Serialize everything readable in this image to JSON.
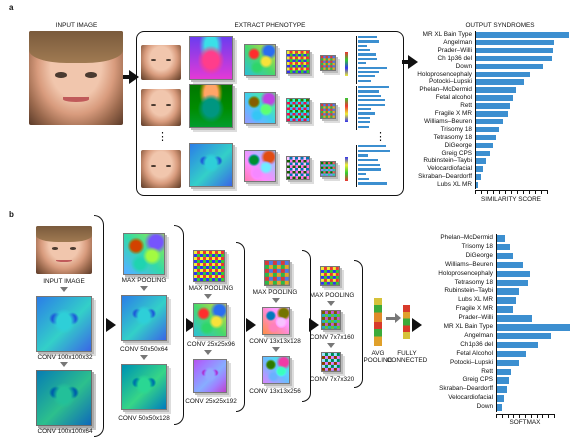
{
  "panel_a": {
    "letter": "a",
    "input_label": "INPUT IMAGE",
    "extract_label": "EXTRACT PHENOTYPE",
    "output_label": "OUTPUT SYNDROMES",
    "similarity_label": "SIMILARITY SCORE",
    "dots": "⋮",
    "syndromes": [
      {
        "name": "MR XL Bain Type",
        "score": 1.0
      },
      {
        "name": "Angelman",
        "score": 0.84
      },
      {
        "name": "Prader–Willi",
        "score": 0.83
      },
      {
        "name": "Ch 1p36 del",
        "score": 0.82
      },
      {
        "name": "Down",
        "score": 0.72
      },
      {
        "name": "Holoprosencephaly",
        "score": 0.58
      },
      {
        "name": "Potocki–Lupski",
        "score": 0.52
      },
      {
        "name": "Phelan–McDermid",
        "score": 0.44
      },
      {
        "name": "Fetal alcohol",
        "score": 0.4
      },
      {
        "name": "Rett",
        "score": 0.37
      },
      {
        "name": "Fragile X MR",
        "score": 0.35
      },
      {
        "name": "Williams–Beuren",
        "score": 0.3
      },
      {
        "name": "Trisomy 18",
        "score": 0.26
      },
      {
        "name": "Tetrasomy 18",
        "score": 0.22
      },
      {
        "name": "DiGeorge",
        "score": 0.19
      },
      {
        "name": "Greig CPS",
        "score": 0.16
      },
      {
        "name": "Rubinstein–Taybi",
        "score": 0.12
      },
      {
        "name": "Velocardiofacial",
        "score": 0.09
      },
      {
        "name": "Skraban–Deardorff",
        "score": 0.06
      },
      {
        "name": "Lubs XL MR",
        "score": 0.03
      }
    ]
  },
  "panel_b": {
    "letter": "b",
    "input_label": "INPUT IMAGE",
    "conv1": "CONV 100x100x32",
    "conv2": "CONV 100x100x64",
    "maxpool1": "MAX POOLING",
    "conv3": "CONV 50x50x64",
    "conv4": "CONV 50x50x128",
    "maxpool2": "MAX POOLING",
    "conv5": "CONV 25x25x96",
    "conv6": "CONV 25x25x192",
    "maxpool3": "MAX POOLING",
    "conv7": "CONV 13x13x128",
    "conv8": "CONV 13x13x256",
    "maxpool4": "MAX POOLING",
    "conv9": "CONV 7x7x160",
    "conv10": "CONV 7x7x320",
    "avg_pool": "AVG\nPOOLING",
    "fully_connected": "FULLY\nCONNECTED",
    "softmax_label": "SOFTMAX",
    "softmax": [
      {
        "name": "Phelan–McDermid",
        "value": 0.12
      },
      {
        "name": "Trisomy 18",
        "value": 0.18
      },
      {
        "name": "DiGeorge",
        "value": 0.22
      },
      {
        "name": "Williams–Beuren",
        "value": 0.35
      },
      {
        "name": "Holoprosencephaly",
        "value": 0.45
      },
      {
        "name": "Tetrasomy 18",
        "value": 0.42
      },
      {
        "name": "Rubinstein–Taybi",
        "value": 0.3
      },
      {
        "name": "Lubs XL MR",
        "value": 0.26
      },
      {
        "name": "Fragile X MR",
        "value": 0.22
      },
      {
        "name": "Prader–Willi",
        "value": 0.48
      },
      {
        "name": "MR XL Bain Type",
        "value": 0.98
      },
      {
        "name": "Angelman",
        "value": 0.72
      },
      {
        "name": "Ch1p36 del",
        "value": 0.55
      },
      {
        "name": "Fetal Alcohol",
        "value": 0.4
      },
      {
        "name": "Potocki–Lupski",
        "value": 0.3
      },
      {
        "name": "Rett",
        "value": 0.2
      },
      {
        "name": "Greig CPS",
        "value": 0.17
      },
      {
        "name": "Skraban–Deardorff",
        "value": 0.14
      },
      {
        "name": "Velocardiofacial",
        "value": 0.1
      },
      {
        "name": "Down",
        "value": 0.08
      }
    ]
  },
  "colors": {
    "bar": "#3c8fd0",
    "arrow": "#111111",
    "secondary_arrow": "#777777"
  }
}
